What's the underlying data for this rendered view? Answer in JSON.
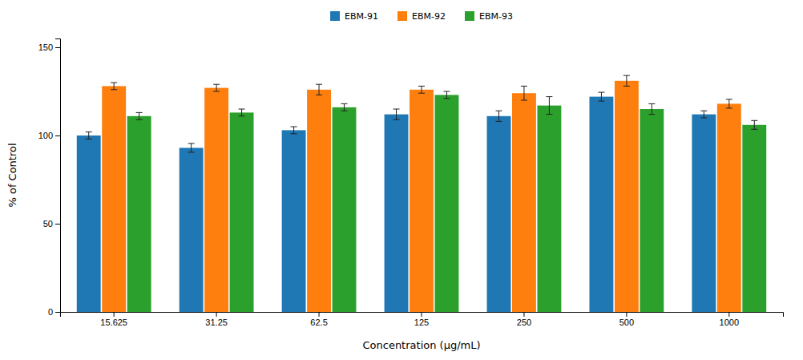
{
  "chart_data": {
    "type": "bar",
    "xlabel": "Concentration (μg/mL)",
    "ylabel": "% of Control",
    "categories": [
      "15.625",
      "31.25",
      "62.5",
      "125",
      "250",
      "500",
      "1000"
    ],
    "series": [
      {
        "name": "EBM-91",
        "values": [
          100,
          93,
          103,
          112,
          111,
          122,
          112
        ],
        "errors": [
          2.0,
          2.5,
          2.0,
          3.0,
          3.0,
          2.5,
          2.0
        ]
      },
      {
        "name": "EBM-92",
        "values": [
          128,
          127,
          126,
          126,
          124,
          131,
          118
        ],
        "errors": [
          2.0,
          2.0,
          3.0,
          2.0,
          4.0,
          3.0,
          2.5
        ]
      },
      {
        "name": "EBM-93",
        "values": [
          111,
          113,
          116,
          123,
          117,
          115,
          106
        ],
        "errors": [
          2.0,
          2.0,
          2.0,
          2.0,
          5.0,
          3.0,
          2.5
        ]
      }
    ],
    "ylim": [
      0,
      155
    ],
    "yticks": [
      0,
      50,
      100,
      150
    ],
    "grid": false,
    "legend": "top"
  }
}
